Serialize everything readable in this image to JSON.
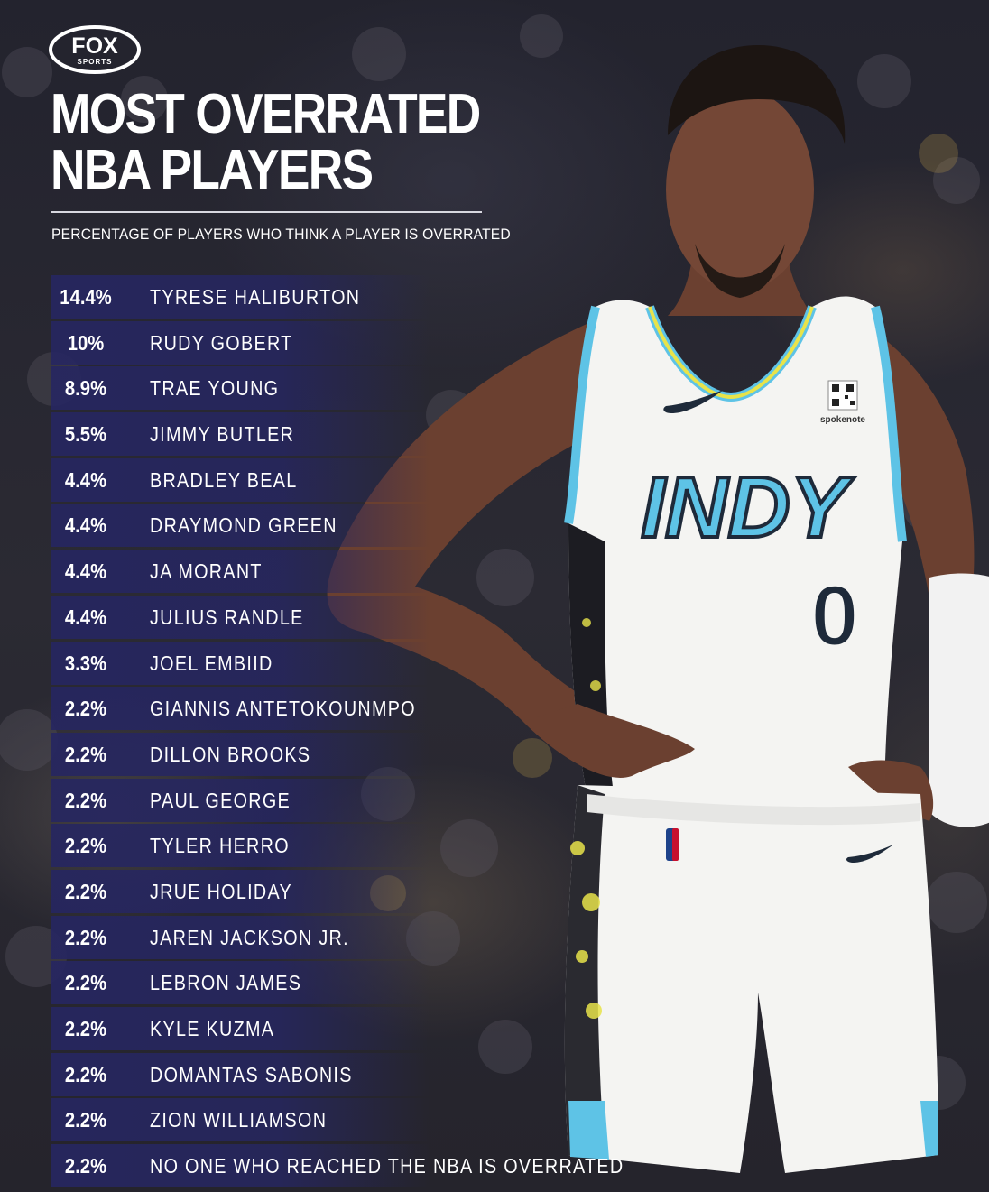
{
  "brand": {
    "logo_text": "FOX",
    "logo_subtext": "SPORTS"
  },
  "title": {
    "line1": "MOST OVERRATED",
    "line2": "NBA PLAYERS"
  },
  "subtitle": "PERCENTAGE OF PLAYERS WHO THINK A PLAYER IS OVERRATED",
  "jersey": {
    "team_text": "INDY",
    "number": "0",
    "patch": "spokenote"
  },
  "colors": {
    "row_bg": "#262660",
    "text": "#ffffff",
    "jersey_accent": "#5ec3e6",
    "jersey_yellow": "#e8e34a"
  },
  "rows": [
    {
      "pct": "14.4%",
      "name": "TYRESE HALIBURTON"
    },
    {
      "pct": "10%",
      "name": "RUDY GOBERT"
    },
    {
      "pct": "8.9%",
      "name": "TRAE YOUNG"
    },
    {
      "pct": "5.5%",
      "name": "JIMMY BUTLER"
    },
    {
      "pct": "4.4%",
      "name": "BRADLEY BEAL"
    },
    {
      "pct": "4.4%",
      "name": "DRAYMOND GREEN"
    },
    {
      "pct": "4.4%",
      "name": "JA MORANT"
    },
    {
      "pct": "4.4%",
      "name": "JULIUS RANDLE"
    },
    {
      "pct": "3.3%",
      "name": "JOEL EMBIID"
    },
    {
      "pct": "2.2%",
      "name": "GIANNIS ANTETOKOUNMPO"
    },
    {
      "pct": "2.2%",
      "name": "DILLON BROOKS"
    },
    {
      "pct": "2.2%",
      "name": "PAUL GEORGE"
    },
    {
      "pct": "2.2%",
      "name": "TYLER HERRO"
    },
    {
      "pct": "2.2%",
      "name": "JRUE HOLIDAY"
    },
    {
      "pct": "2.2%",
      "name": "JAREN JACKSON JR."
    },
    {
      "pct": "2.2%",
      "name": "LEBRON JAMES"
    },
    {
      "pct": "2.2%",
      "name": "KYLE KUZMA"
    },
    {
      "pct": "2.2%",
      "name": "DOMANTAS SABONIS"
    },
    {
      "pct": "2.2%",
      "name": "ZION WILLIAMSON"
    },
    {
      "pct": "2.2%",
      "name": "NO ONE WHO REACHED THE NBA IS OVERRATED"
    }
  ]
}
